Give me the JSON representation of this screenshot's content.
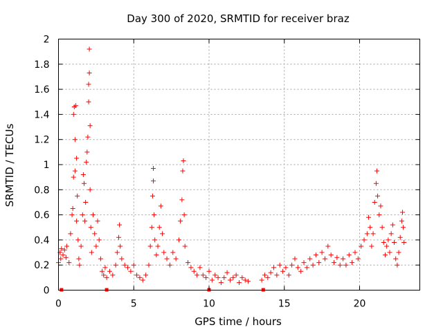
{
  "chart_data": {
    "type": "scatter",
    "title": "Day 300 of 2020, SRMTID for receiver braz",
    "xlabel": "GPS time / hours",
    "ylabel": "SRMTID / TECUs",
    "xlim": [
      0,
      24
    ],
    "ylim": [
      0,
      2
    ],
    "xticks": [
      0,
      5,
      10,
      15,
      20
    ],
    "xtick_labels": [
      "0",
      "5",
      "10",
      "15",
      "20"
    ],
    "yticks": [
      0,
      0.2,
      0.4,
      0.6,
      0.8,
      1,
      1.2,
      1.4,
      1.6,
      1.8,
      2
    ],
    "ytick_labels": [
      "0",
      "0.2",
      "0.4",
      "0.6",
      "0.8",
      "1",
      "1.2",
      "1.4",
      "1.6",
      "1.8",
      "2"
    ],
    "grid": true,
    "marker": "+",
    "color": "#ff0000",
    "bottom_markers_x": [
      0.2,
      3.2,
      10.0,
      13.6
    ],
    "series": [
      {
        "name": "SRMTID",
        "points": [
          [
            0.0,
            0.22
          ],
          [
            0.1,
            0.3
          ],
          [
            0.15,
            0.25
          ],
          [
            0.2,
            0.33
          ],
          [
            0.3,
            0.28
          ],
          [
            0.4,
            0.32
          ],
          [
            0.5,
            0.26
          ],
          [
            0.55,
            0.35
          ],
          [
            0.7,
            0.22
          ],
          [
            0.8,
            0.45
          ],
          [
            0.9,
            0.6
          ],
          [
            0.95,
            0.65
          ],
          [
            1.0,
            0.9
          ],
          [
            1.0,
            1.4
          ],
          [
            1.05,
            1.46
          ],
          [
            1.1,
            1.2
          ],
          [
            1.1,
            0.95
          ],
          [
            1.15,
            1.47
          ],
          [
            1.2,
            1.05
          ],
          [
            1.2,
            0.55
          ],
          [
            1.25,
            0.75
          ],
          [
            1.3,
            0.4
          ],
          [
            1.35,
            0.25
          ],
          [
            1.4,
            0.2
          ],
          [
            1.5,
            0.35
          ],
          [
            1.6,
            0.6
          ],
          [
            1.65,
            0.92
          ],
          [
            1.7,
            0.85
          ],
          [
            1.75,
            0.55
          ],
          [
            1.8,
            0.7
          ],
          [
            1.85,
            1.02
          ],
          [
            1.9,
            1.1
          ],
          [
            1.95,
            1.22
          ],
          [
            2.0,
            1.5
          ],
          [
            2.0,
            1.64
          ],
          [
            2.05,
            1.73
          ],
          [
            2.05,
            1.92
          ],
          [
            2.1,
            1.31
          ],
          [
            2.1,
            0.8
          ],
          [
            2.15,
            0.5
          ],
          [
            2.2,
            0.3
          ],
          [
            2.3,
            0.6
          ],
          [
            2.4,
            0.45
          ],
          [
            2.5,
            0.35
          ],
          [
            2.6,
            0.55
          ],
          [
            2.7,
            0.4
          ],
          [
            2.8,
            0.25
          ],
          [
            2.9,
            0.15
          ],
          [
            3.0,
            0.12
          ],
          [
            3.1,
            0.18
          ],
          [
            3.2,
            0.1
          ],
          [
            3.4,
            0.15
          ],
          [
            3.6,
            0.12
          ],
          [
            3.8,
            0.2
          ],
          [
            3.9,
            0.3
          ],
          [
            4.0,
            0.42
          ],
          [
            4.05,
            0.52
          ],
          [
            4.1,
            0.35
          ],
          [
            4.2,
            0.25
          ],
          [
            4.4,
            0.2
          ],
          [
            4.6,
            0.18
          ],
          [
            4.8,
            0.15
          ],
          [
            5.0,
            0.2
          ],
          [
            5.2,
            0.12
          ],
          [
            5.4,
            0.1
          ],
          [
            5.6,
            0.08
          ],
          [
            5.8,
            0.12
          ],
          [
            6.0,
            0.2
          ],
          [
            6.1,
            0.35
          ],
          [
            6.2,
            0.5
          ],
          [
            6.25,
            0.75
          ],
          [
            6.3,
            0.87
          ],
          [
            6.3,
            0.97
          ],
          [
            6.35,
            0.6
          ],
          [
            6.4,
            0.4
          ],
          [
            6.5,
            0.28
          ],
          [
            6.6,
            0.35
          ],
          [
            6.7,
            0.5
          ],
          [
            6.8,
            0.67
          ],
          [
            6.9,
            0.45
          ],
          [
            7.0,
            0.3
          ],
          [
            7.2,
            0.25
          ],
          [
            7.4,
            0.2
          ],
          [
            7.6,
            0.3
          ],
          [
            7.8,
            0.25
          ],
          [
            8.0,
            0.4
          ],
          [
            8.1,
            0.55
          ],
          [
            8.2,
            0.72
          ],
          [
            8.25,
            0.95
          ],
          [
            8.3,
            1.03
          ],
          [
            8.35,
            0.6
          ],
          [
            8.4,
            0.35
          ],
          [
            8.6,
            0.22
          ],
          [
            8.8,
            0.18
          ],
          [
            9.0,
            0.15
          ],
          [
            9.2,
            0.12
          ],
          [
            9.4,
            0.18
          ],
          [
            9.6,
            0.12
          ],
          [
            9.8,
            0.1
          ],
          [
            10.0,
            0.15
          ],
          [
            10.2,
            0.08
          ],
          [
            10.4,
            0.12
          ],
          [
            10.6,
            0.1
          ],
          [
            10.8,
            0.06
          ],
          [
            11.0,
            0.1
          ],
          [
            11.2,
            0.14
          ],
          [
            11.4,
            0.08
          ],
          [
            11.6,
            0.1
          ],
          [
            11.8,
            0.12
          ],
          [
            12.0,
            0.06
          ],
          [
            12.2,
            0.1
          ],
          [
            12.4,
            0.08
          ],
          [
            12.6,
            0.07
          ],
          [
            13.5,
            0.08
          ],
          [
            13.7,
            0.12
          ],
          [
            13.9,
            0.1
          ],
          [
            14.1,
            0.14
          ],
          [
            14.3,
            0.18
          ],
          [
            14.5,
            0.12
          ],
          [
            14.7,
            0.2
          ],
          [
            14.9,
            0.15
          ],
          [
            15.1,
            0.18
          ],
          [
            15.3,
            0.12
          ],
          [
            15.5,
            0.2
          ],
          [
            15.7,
            0.25
          ],
          [
            15.9,
            0.18
          ],
          [
            16.1,
            0.15
          ],
          [
            16.3,
            0.22
          ],
          [
            16.5,
            0.18
          ],
          [
            16.7,
            0.25
          ],
          [
            16.9,
            0.2
          ],
          [
            17.1,
            0.28
          ],
          [
            17.3,
            0.22
          ],
          [
            17.5,
            0.3
          ],
          [
            17.7,
            0.25
          ],
          [
            17.9,
            0.35
          ],
          [
            18.1,
            0.28
          ],
          [
            18.3,
            0.22
          ],
          [
            18.5,
            0.26
          ],
          [
            18.7,
            0.2
          ],
          [
            18.9,
            0.25
          ],
          [
            19.1,
            0.2
          ],
          [
            19.3,
            0.28
          ],
          [
            19.5,
            0.22
          ],
          [
            19.7,
            0.3
          ],
          [
            19.9,
            0.25
          ],
          [
            20.1,
            0.35
          ],
          [
            20.3,
            0.4
          ],
          [
            20.5,
            0.45
          ],
          [
            20.6,
            0.58
          ],
          [
            20.7,
            0.5
          ],
          [
            20.8,
            0.35
          ],
          [
            20.9,
            0.45
          ],
          [
            21.0,
            0.7
          ],
          [
            21.1,
            0.85
          ],
          [
            21.15,
            0.95
          ],
          [
            21.2,
            0.75
          ],
          [
            21.3,
            0.6
          ],
          [
            21.4,
            0.67
          ],
          [
            21.5,
            0.5
          ],
          [
            21.6,
            0.38
          ],
          [
            21.7,
            0.28
          ],
          [
            21.8,
            0.35
          ],
          [
            21.9,
            0.4
          ],
          [
            22.0,
            0.3
          ],
          [
            22.1,
            0.45
          ],
          [
            22.2,
            0.52
          ],
          [
            22.3,
            0.38
          ],
          [
            22.4,
            0.25
          ],
          [
            22.5,
            0.2
          ],
          [
            22.6,
            0.3
          ],
          [
            22.7,
            0.42
          ],
          [
            22.8,
            0.55
          ],
          [
            22.85,
            0.62
          ],
          [
            22.9,
            0.5
          ],
          [
            22.95,
            0.38
          ]
        ]
      }
    ]
  }
}
